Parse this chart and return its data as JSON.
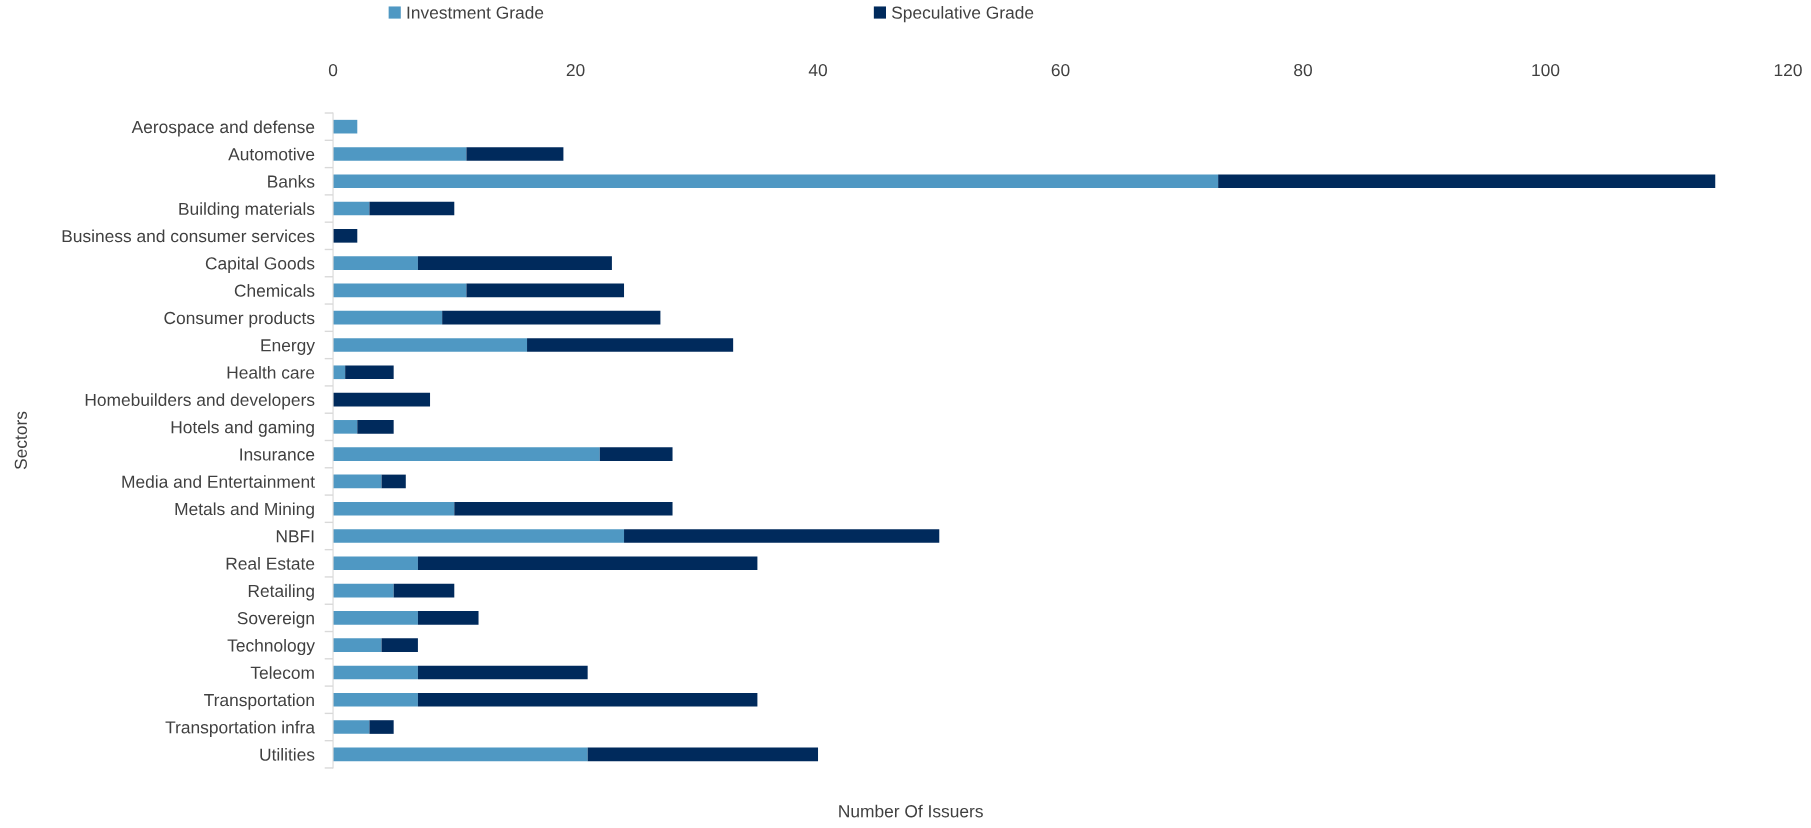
{
  "chart_data": {
    "type": "bar",
    "orientation": "horizontal",
    "stacked": true,
    "categories": [
      "Aerospace and defense",
      "Automotive",
      "Banks",
      "Building materials",
      "Business and consumer services",
      "Capital Goods",
      "Chemicals",
      "Consumer products",
      "Energy",
      "Health care",
      "Homebuilders and developers",
      "Hotels and gaming",
      "Insurance",
      "Media and Entertainment",
      "Metals and Mining",
      "NBFI",
      "Real Estate",
      "Retailing",
      "Sovereign",
      "Technology",
      "Telecom",
      "Transportation",
      "Transportation infra",
      "Utilities"
    ],
    "series": [
      {
        "name": "Investment Grade",
        "color": "#4f98c3",
        "values": [
          2,
          11,
          73,
          3,
          0,
          7,
          11,
          9,
          16,
          1,
          0,
          2,
          22,
          4,
          10,
          24,
          7,
          5,
          7,
          4,
          7,
          7,
          3,
          21
        ]
      },
      {
        "name": "Speculative Grade",
        "color": "#002a5c",
        "values": [
          0,
          8,
          41,
          7,
          2,
          16,
          13,
          18,
          17,
          4,
          8,
          3,
          6,
          2,
          18,
          26,
          28,
          5,
          5,
          3,
          14,
          28,
          2,
          19
        ]
      }
    ],
    "xlim": [
      0,
      120
    ],
    "xticks": [
      0,
      20,
      40,
      60,
      80,
      100,
      120
    ],
    "xlabel": "Number Of Issuers",
    "ylabel": "Sectors",
    "legend": "top",
    "grid": false
  }
}
